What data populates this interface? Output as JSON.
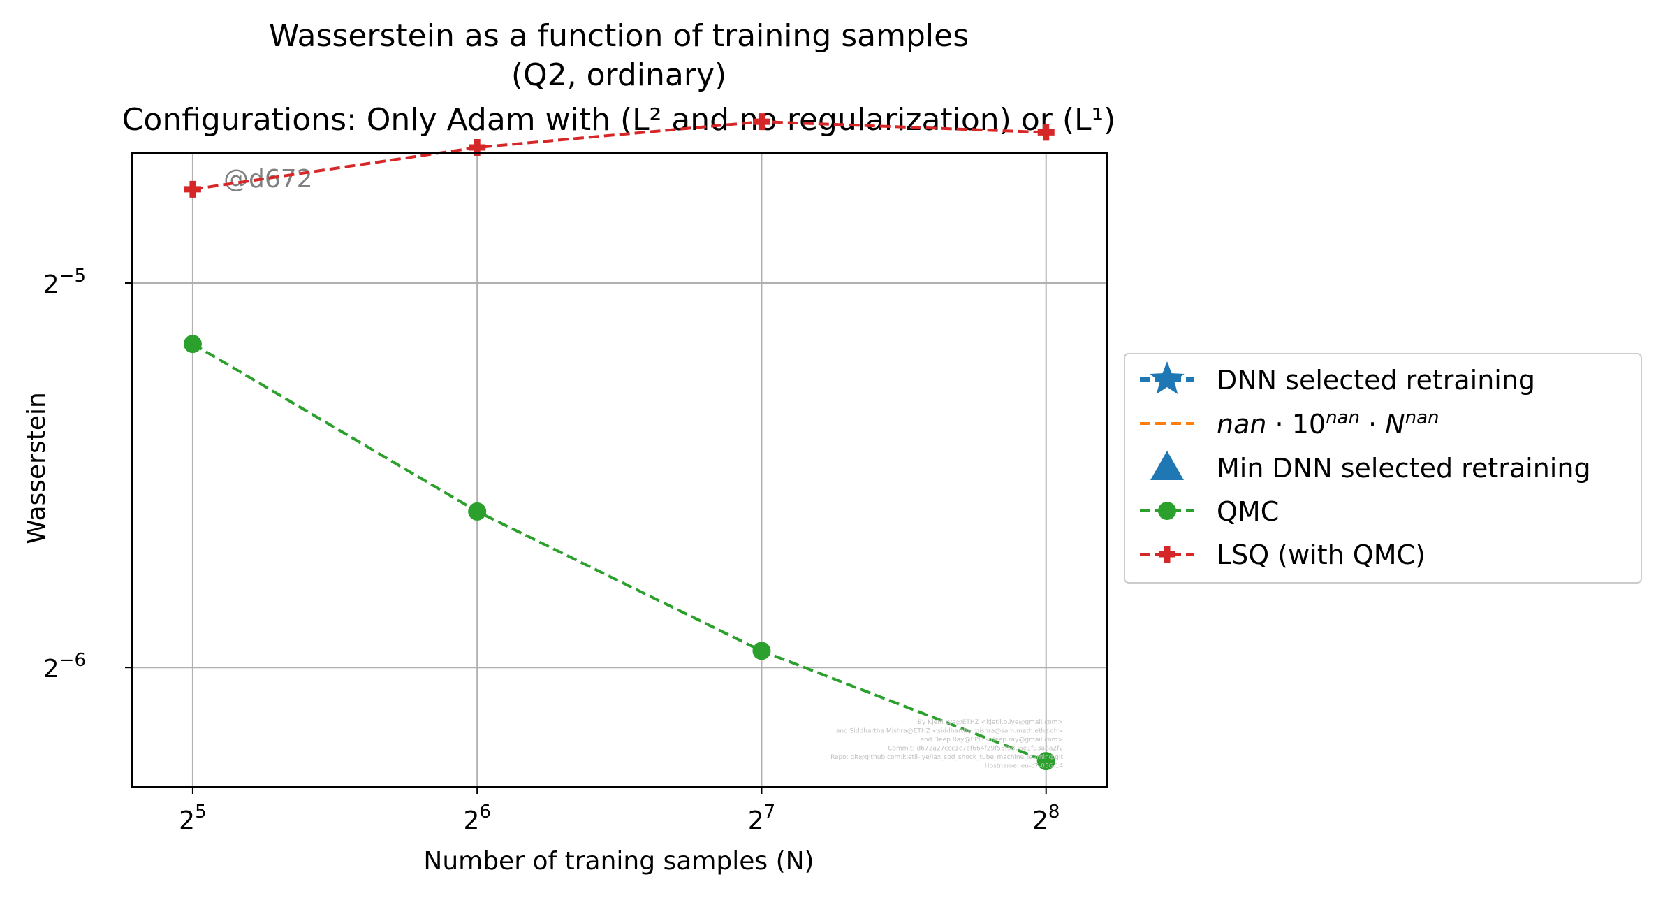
{
  "chart_data": {
    "type": "line",
    "title_lines": [
      "Wasserstein as a function of training samples",
      "(Q2, ordinary)",
      "Configurations: Only Adam with (L² and no regularization) or (L¹)"
    ],
    "xlabel": "Number of traning samples (N)",
    "ylabel": "Wasserstein",
    "x_scale": "log2",
    "y_scale": "log2",
    "x_ticks": [
      {
        "base": "2",
        "exp": "5",
        "value": 32
      },
      {
        "base": "2",
        "exp": "6",
        "value": 64
      },
      {
        "base": "2",
        "exp": "7",
        "value": 128
      },
      {
        "base": "2",
        "exp": "8",
        "value": 256
      }
    ],
    "y_ticks": [
      {
        "base": "2",
        "exp": "−5",
        "value": 0.03125
      },
      {
        "base": "2",
        "exp": "−6",
        "value": 0.015625
      }
    ],
    "xlim": [
      27.6,
      297
    ],
    "ylim": [
      0.0126,
      0.0395
    ],
    "grid": true,
    "legend_position": "outside-right",
    "series": [
      {
        "name": "DNN selected retraining",
        "color": "#1f77b4",
        "marker": "star",
        "linestyle": "dashed",
        "x": [],
        "y": []
      },
      {
        "name": "nan · 10^nan · N^nan",
        "color": "#ff7f0e",
        "marker": "none",
        "linestyle": "dashed",
        "x": [],
        "y": []
      },
      {
        "name": "Min DNN selected retraining",
        "color": "#1f77b4",
        "marker": "triangle",
        "linestyle": "none",
        "x": [],
        "y": []
      },
      {
        "name": "QMC",
        "color": "#2ca02c",
        "marker": "circle",
        "linestyle": "dashed",
        "x": [
          32,
          64,
          128,
          256
        ],
        "y": [
          0.028,
          0.0207,
          0.0161,
          0.0132
        ]
      },
      {
        "name": "LSQ (with QMC)",
        "color": "#d62728",
        "marker": "plus",
        "linestyle": "dashed",
        "x": [
          32,
          64,
          128,
          256
        ],
        "y": [
          0.037,
          0.0399,
          0.0418,
          0.041
        ]
      }
    ],
    "annotations": {
      "watermark": "@d672",
      "credits": [
        "By Kjetil Lye@ETHZ <kjetil.o.lye@gmail.com>",
        "and Siddhartha Mishra@ETHZ <siddhartha.mishra@sam.math.ethz.ch>",
        "and Deep Ray@EPFL<deep.ray@gmail.com>",
        "Commit: d672a27ccc1c7ef664f29f55f5806e1f93aba2f2",
        "Repo: git@github.com:kjetil-lye/lax_sod_shock_tube_machine_learning.git",
        "Hostname: eu-c7-056-14"
      ]
    }
  }
}
